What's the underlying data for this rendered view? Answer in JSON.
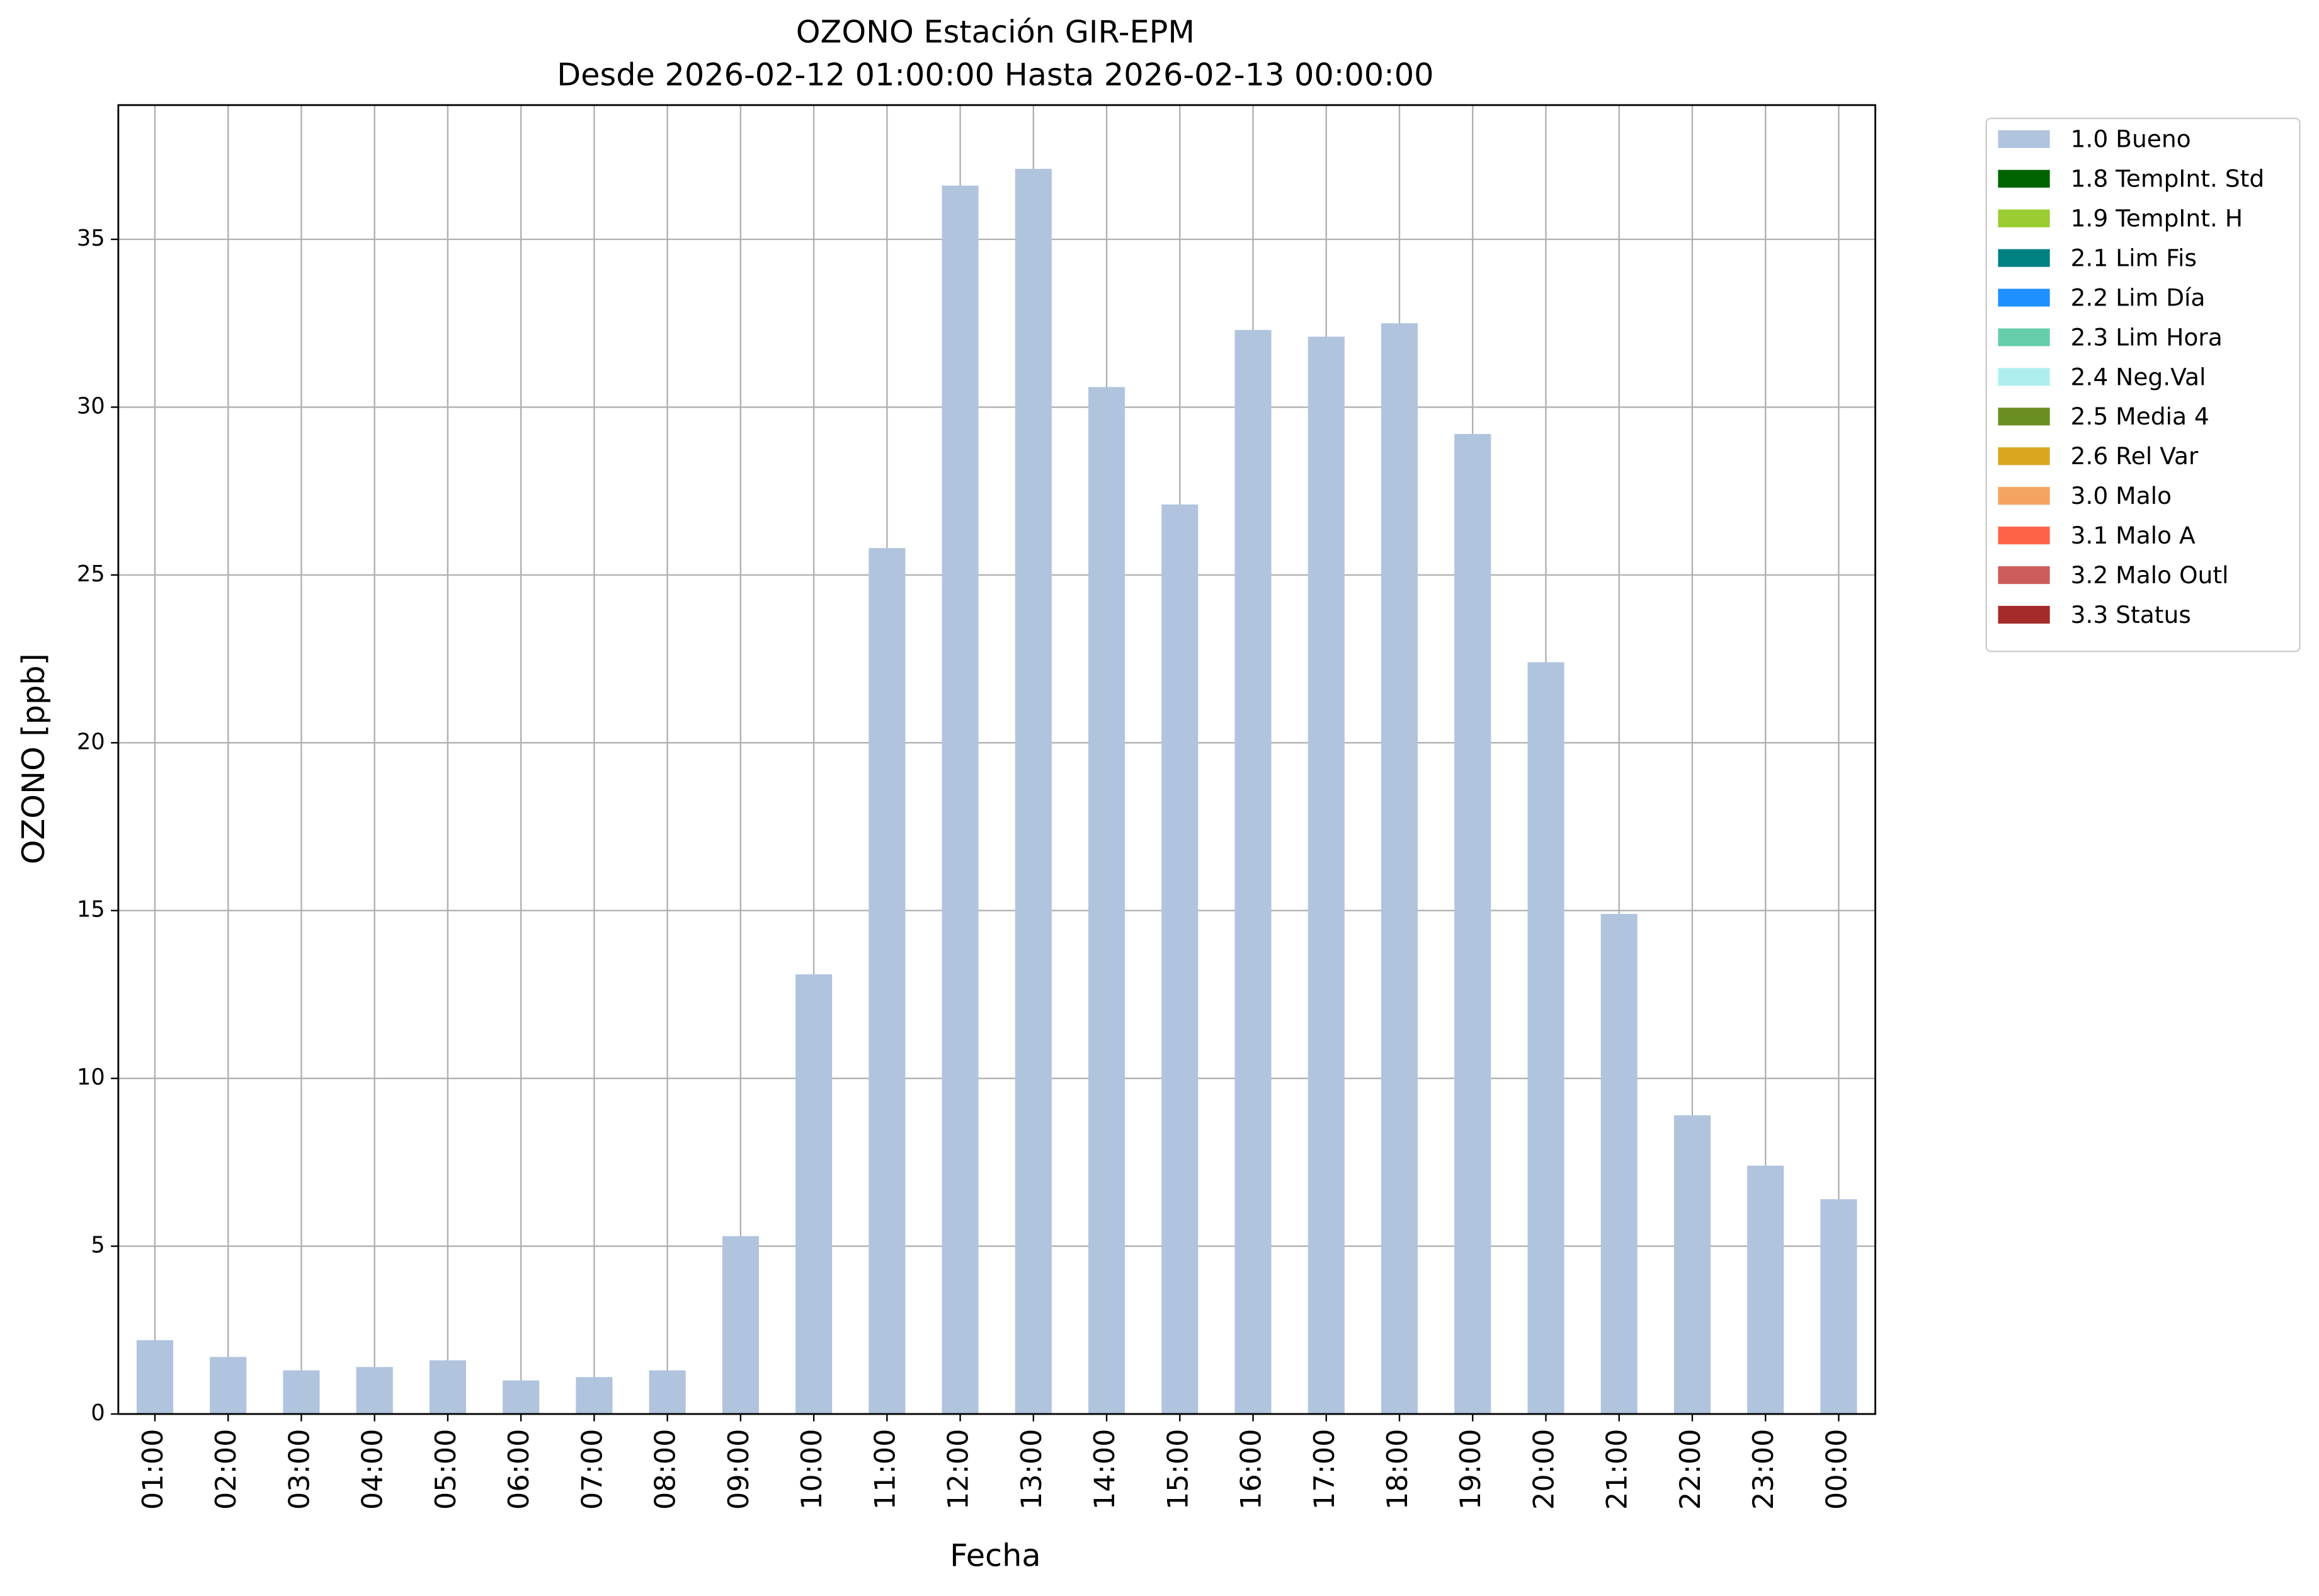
{
  "chart_data": {
    "type": "bar",
    "stacked": true,
    "title": "OZONO Estación GIR-EPM",
    "subtitle": "Desde 2026-02-12 01:00:00 Hasta 2026-02-13 00:00:00",
    "x_label": "Fecha",
    "y_label": "OZONO [ppb]",
    "categories": [
      "01:00",
      "02:00",
      "03:00",
      "04:00",
      "05:00",
      "06:00",
      "07:00",
      "08:00",
      "09:00",
      "10:00",
      "11:00",
      "12:00",
      "13:00",
      "14:00",
      "15:00",
      "16:00",
      "17:00",
      "18:00",
      "19:00",
      "20:00",
      "21:00",
      "22:00",
      "23:00",
      "00:00"
    ],
    "series": [
      {
        "name": "1.0 Bueno",
        "color": "#b0c4de",
        "values": [
          2.2,
          1.7,
          1.3,
          1.4,
          1.6,
          1.0,
          1.1,
          1.3,
          5.3,
          13.1,
          25.8,
          36.6,
          37.1,
          30.6,
          27.1,
          32.3,
          32.1,
          32.5,
          29.2,
          22.4,
          14.9,
          8.9,
          7.4,
          6.4
        ]
      },
      {
        "name": "1.8 TempInt. Std",
        "color": "#006400",
        "values": [
          0,
          0,
          0,
          0,
          0,
          0,
          0,
          0,
          0,
          0,
          0,
          0,
          0,
          0,
          0,
          0,
          0,
          0,
          0,
          0,
          0,
          0,
          0,
          0
        ]
      },
      {
        "name": "1.9 TempInt. H",
        "color": "#9acd32",
        "values": [
          0,
          0,
          0,
          0,
          0,
          0,
          0,
          0,
          0,
          0,
          0,
          0,
          0,
          0,
          0,
          0,
          0,
          0,
          0,
          0,
          0,
          0,
          0,
          0
        ]
      },
      {
        "name": "2.1 Lim Fis",
        "color": "#008080",
        "values": [
          0,
          0,
          0,
          0,
          0,
          0,
          0,
          0,
          0,
          0,
          0,
          0,
          0,
          0,
          0,
          0,
          0,
          0,
          0,
          0,
          0,
          0,
          0,
          0
        ]
      },
      {
        "name": "2.2 Lim Día",
        "color": "#1e90ff",
        "values": [
          0,
          0,
          0,
          0,
          0,
          0,
          0,
          0,
          0,
          0,
          0,
          0,
          0,
          0,
          0,
          0,
          0,
          0,
          0,
          0,
          0,
          0,
          0,
          0
        ]
      },
      {
        "name": "2.3 Lim Hora",
        "color": "#66cdaa",
        "values": [
          0,
          0,
          0,
          0,
          0,
          0,
          0,
          0,
          0,
          0,
          0,
          0,
          0,
          0,
          0,
          0,
          0,
          0,
          0,
          0,
          0,
          0,
          0,
          0
        ]
      },
      {
        "name": "2.4 Neg.Val",
        "color": "#afeeee",
        "values": [
          0,
          0,
          0,
          0,
          0,
          0,
          0,
          0,
          0,
          0,
          0,
          0,
          0,
          0,
          0,
          0,
          0,
          0,
          0,
          0,
          0,
          0,
          0,
          0
        ]
      },
      {
        "name": "2.5 Media 4",
        "color": "#6b8e23",
        "values": [
          0,
          0,
          0,
          0,
          0,
          0,
          0,
          0,
          0,
          0,
          0,
          0,
          0,
          0,
          0,
          0,
          0,
          0,
          0,
          0,
          0,
          0,
          0,
          0
        ]
      },
      {
        "name": "2.6 Rel Var",
        "color": "#daa520",
        "values": [
          0,
          0,
          0,
          0,
          0,
          0,
          0,
          0,
          0,
          0,
          0,
          0,
          0,
          0,
          0,
          0,
          0,
          0,
          0,
          0,
          0,
          0,
          0,
          0
        ]
      },
      {
        "name": "3.0 Malo",
        "color": "#f4a460",
        "values": [
          0,
          0,
          0,
          0,
          0,
          0,
          0,
          0,
          0,
          0,
          0,
          0,
          0,
          0,
          0,
          0,
          0,
          0,
          0,
          0,
          0,
          0,
          0,
          0
        ]
      },
      {
        "name": "3.1 Malo A",
        "color": "#ff6347",
        "values": [
          0,
          0,
          0,
          0,
          0,
          0,
          0,
          0,
          0,
          0,
          0,
          0,
          0,
          0,
          0,
          0,
          0,
          0,
          0,
          0,
          0,
          0,
          0,
          0
        ]
      },
      {
        "name": "3.2 Malo Outl",
        "color": "#cd5c5c",
        "values": [
          0,
          0,
          0,
          0,
          0,
          0,
          0,
          0,
          0,
          0,
          0,
          0,
          0,
          0,
          0,
          0,
          0,
          0,
          0,
          0,
          0,
          0,
          0,
          0
        ]
      },
      {
        "name": "3.3 Status",
        "color": "#a52a2a",
        "values": [
          0,
          0,
          0,
          0,
          0,
          0,
          0,
          0,
          0,
          0,
          0,
          0,
          0,
          0,
          0,
          0,
          0,
          0,
          0,
          0,
          0,
          0,
          0,
          0
        ]
      }
    ],
    "ylim": [
      0,
      39
    ],
    "yticks": [
      0,
      5,
      10,
      15,
      20,
      25,
      30,
      35
    ],
    "grid": true,
    "legend": "outside upper right"
  }
}
